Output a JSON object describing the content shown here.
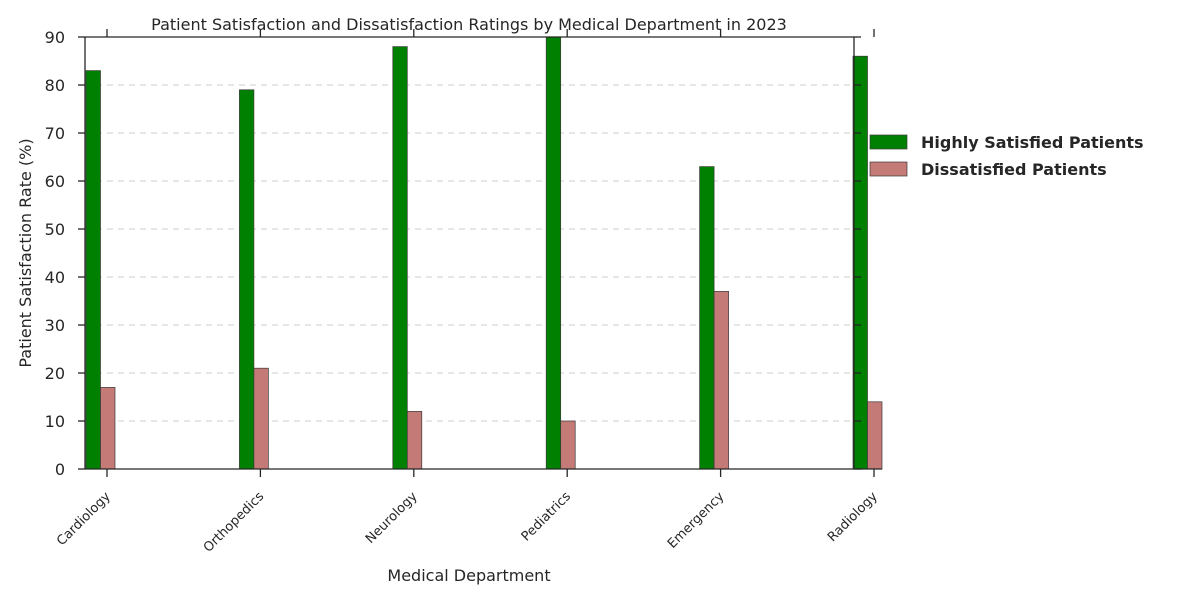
{
  "chart_data": {
    "type": "bar",
    "title": "Patient Satisfaction and Dissatisfaction Ratings by Medical Department in 2023",
    "xlabel": "Medical Department",
    "ylabel": "Patient Satisfaction Rate (%)",
    "categories": [
      "Cardiology",
      "Orthopedics",
      "Neurology",
      "Pediatrics",
      "Emergency",
      "Radiology"
    ],
    "series": [
      {
        "name": "Highly Satisfied Patients",
        "values": [
          83,
          79,
          88,
          90,
          63,
          86
        ],
        "color": "#008000"
      },
      {
        "name": "Dissatisfied Patients",
        "values": [
          17,
          21,
          12,
          10,
          37,
          14
        ],
        "color": "#c47a76"
      }
    ],
    "ylim": [
      0,
      90
    ],
    "yticks": [
      0,
      10,
      20,
      30,
      40,
      50,
      60,
      70,
      80,
      90
    ],
    "grid": true,
    "legend_position": "right"
  }
}
